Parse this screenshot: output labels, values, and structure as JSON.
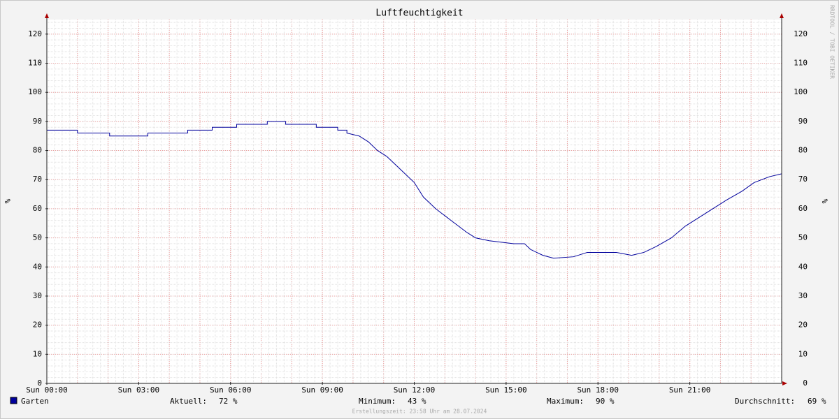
{
  "chart_data": {
    "type": "line",
    "title": "Luftfeuchtigkeit",
    "y_label": "%",
    "y2_label": "%",
    "watermark": "RRDTOOL / TOBI OETIKER",
    "footer": "Erstellungszeit: 23:58 Uhr am 28.07.2024",
    "xlim": [
      0,
      24
    ],
    "xticks": [
      {
        "value": 0,
        "label": "Sun 00:00"
      },
      {
        "value": 3,
        "label": "Sun 03:00"
      },
      {
        "value": 6,
        "label": "Sun 06:00"
      },
      {
        "value": 9,
        "label": "Sun 09:00"
      },
      {
        "value": 12,
        "label": "Sun 12:00"
      },
      {
        "value": 15,
        "label": "Sun 15:00"
      },
      {
        "value": 18,
        "label": "Sun 18:00"
      },
      {
        "value": 21,
        "label": "Sun 21:00"
      }
    ],
    "ylim": [
      0,
      125
    ],
    "yticks": [
      0,
      10,
      20,
      30,
      40,
      50,
      60,
      70,
      80,
      90,
      100,
      110,
      120
    ],
    "grid": true,
    "x": [
      0,
      1,
      1,
      2.05,
      2.05,
      3.3,
      3.3,
      4.6,
      4.6,
      5.4,
      5.4,
      6.2,
      6.2,
      7.2,
      7.2,
      7.8,
      7.8,
      8.8,
      8.8,
      9.5,
      9.5,
      9.8,
      9.8,
      10.2,
      10.5,
      10.8,
      11.1,
      11.4,
      11.7,
      12,
      12.3,
      12.7,
      13.2,
      13.7,
      14,
      14.45,
      15.25,
      15.6,
      15.8,
      16.2,
      16.55,
      17.2,
      17.65,
      18.6,
      19.1,
      19.5,
      19.9,
      20.4,
      20.85,
      21.3,
      21.75,
      22.2,
      22.7,
      23.1,
      23.6,
      24
    ],
    "series": [
      {
        "name": "Garten",
        "color": "#00009c",
        "values": [
          87,
          87,
          86,
          86,
          85,
          85,
          86,
          86,
          87,
          87,
          88,
          88,
          89,
          89,
          90,
          90,
          89,
          89,
          88,
          88,
          87,
          87,
          86,
          85,
          83,
          80,
          78,
          75,
          72,
          69,
          64,
          60,
          56,
          52,
          50,
          49,
          48,
          48,
          46,
          44,
          43,
          43.5,
          45,
          45,
          44,
          45,
          47,
          50,
          54,
          57,
          60,
          63,
          66,
          69,
          71,
          72
        ]
      }
    ],
    "stats": [
      {
        "label": "Aktuell:",
        "value": "72 %"
      },
      {
        "label": "Minimum:",
        "value": "43 %"
      },
      {
        "label": "Maximum:",
        "value": "90 %"
      },
      {
        "label": "Durchschnitt:",
        "value": "69 %"
      }
    ]
  }
}
